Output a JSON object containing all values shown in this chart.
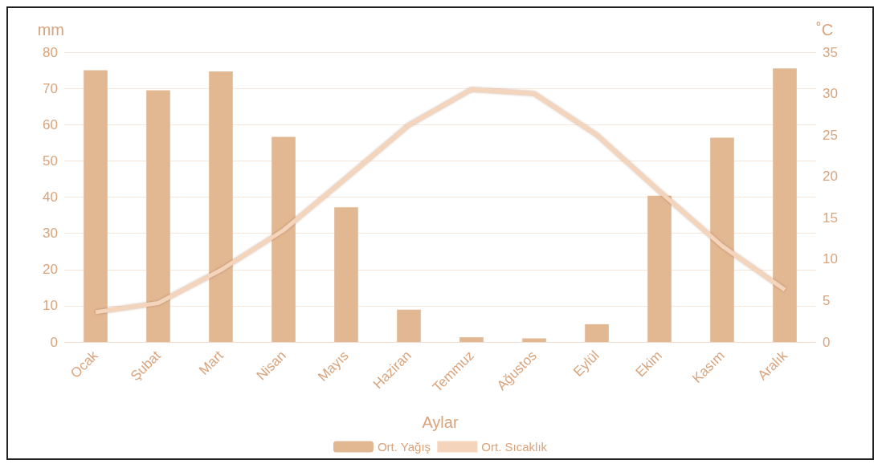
{
  "chart_data": {
    "type": "bar",
    "xlabel": "Aylar",
    "ylabel": "mm",
    "y2label": "˚C",
    "categories": [
      "Ocak",
      "Şubat",
      "Mart",
      "Nisan",
      "Mayıs",
      "Haziran",
      "Temmuz",
      "Ağustos",
      "Eylül",
      "Ekim",
      "Kasım",
      "Aralık"
    ],
    "series": [
      {
        "name": "Ort. Yağış",
        "color": "#e2b893",
        "values": [
          75,
          69.5,
          74.7,
          56.6,
          37.2,
          8.9,
          1.3,
          1,
          4.9,
          40.4,
          56.4,
          75.5
        ]
      },
      {
        "name": "Ort. Sıcaklık",
        "type": "line",
        "axis": "y2",
        "color": "#f4d4bb",
        "values": [
          3.6,
          4.7,
          8.7,
          13.5,
          19.8,
          26.2,
          30.5,
          30,
          25,
          18.2,
          11.6,
          6.3
        ]
      }
    ],
    "ylim": [
      0,
      80
    ],
    "yticks": [
      0,
      10,
      20,
      30,
      40,
      50,
      60,
      70,
      80
    ],
    "y2lim": [
      0,
      35
    ],
    "y2ticks": [
      0,
      5,
      10,
      15,
      20,
      25,
      30,
      35
    ],
    "grid": "y",
    "legend": "bottom",
    "marker": "none",
    "line_style": "solid"
  }
}
